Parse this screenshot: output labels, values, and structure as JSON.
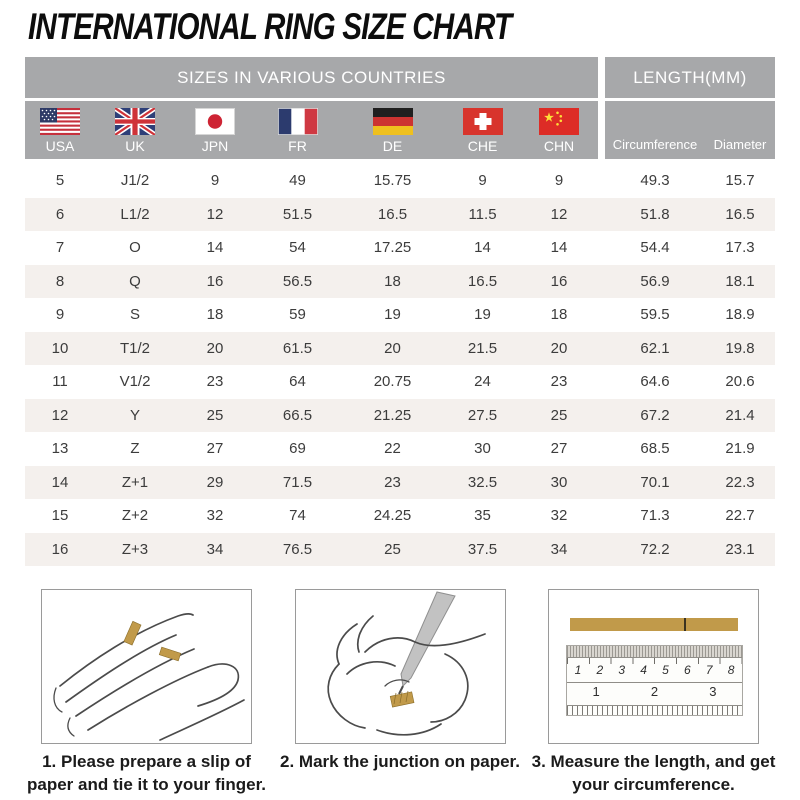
{
  "title": "INTERNATIONAL RING SIZE CHART",
  "table": {
    "header_left": "SIZES IN VARIOUS COUNTRIES",
    "header_right": "LENGTH(MM)",
    "columns": [
      {
        "id": "usa",
        "label": "USA"
      },
      {
        "id": "uk",
        "label": "UK"
      },
      {
        "id": "jpn",
        "label": "JPN"
      },
      {
        "id": "fr",
        "label": "FR"
      },
      {
        "id": "de",
        "label": "DE"
      },
      {
        "id": "che",
        "label": "CHE"
      },
      {
        "id": "chn",
        "label": "CHN"
      }
    ],
    "length_columns": [
      {
        "label": "Circumference"
      },
      {
        "label": "Diameter"
      }
    ],
    "rows": [
      [
        "5",
        "J1/2",
        "9",
        "49",
        "15.75",
        "9",
        "9",
        "49.3",
        "15.7"
      ],
      [
        "6",
        "L1/2",
        "12",
        "51.5",
        "16.5",
        "11.5",
        "12",
        "51.8",
        "16.5"
      ],
      [
        "7",
        "O",
        "14",
        "54",
        "17.25",
        "14",
        "14",
        "54.4",
        "17.3"
      ],
      [
        "8",
        "Q",
        "16",
        "56.5",
        "18",
        "16.5",
        "16",
        "56.9",
        "18.1"
      ],
      [
        "9",
        "S",
        "18",
        "59",
        "19",
        "19",
        "18",
        "59.5",
        "18.9"
      ],
      [
        "10",
        "T1/2",
        "20",
        "61.5",
        "20",
        "21.5",
        "20",
        "62.1",
        "19.8"
      ],
      [
        "11",
        "V1/2",
        "23",
        "64",
        "20.75",
        "24",
        "23",
        "64.6",
        "20.6"
      ],
      [
        "12",
        "Y",
        "25",
        "66.5",
        "21.25",
        "27.5",
        "25",
        "67.2",
        "21.4"
      ],
      [
        "13",
        "Z",
        "27",
        "69",
        "22",
        "30",
        "27",
        "68.5",
        "21.9"
      ],
      [
        "14",
        "Z+1",
        "29",
        "71.5",
        "23",
        "32.5",
        "30",
        "70.1",
        "22.3"
      ],
      [
        "15",
        "Z+2",
        "32",
        "74",
        "24.25",
        "35",
        "32",
        "71.3",
        "22.7"
      ],
      [
        "16",
        "Z+3",
        "34",
        "76.5",
        "25",
        "37.5",
        "34",
        "72.2",
        "23.1"
      ]
    ]
  },
  "steps": [
    {
      "text": "1. Please prepare a slip of paper and tie it to your finger."
    },
    {
      "text": "2. Mark the junction on paper."
    },
    {
      "text": "3. Measure the length, and get your circumference."
    }
  ],
  "ruler": {
    "cm_ticks": [
      "1",
      "2",
      "3",
      "4",
      "5",
      "6",
      "7",
      "8"
    ],
    "inch_ticks": [
      "1",
      "2",
      "3"
    ]
  },
  "icons": {
    "flags": [
      "usa-flag-icon",
      "uk-flag-icon",
      "jpn-flag-icon",
      "fr-flag-icon",
      "de-flag-icon",
      "che-flag-icon",
      "chn-flag-icon"
    ]
  },
  "colors": {
    "header_gray": "#a7a8aa",
    "row_stripe": "#f4f0ed",
    "paper_gold": "#c19a4a",
    "text_dark": "#3c3c3c"
  }
}
